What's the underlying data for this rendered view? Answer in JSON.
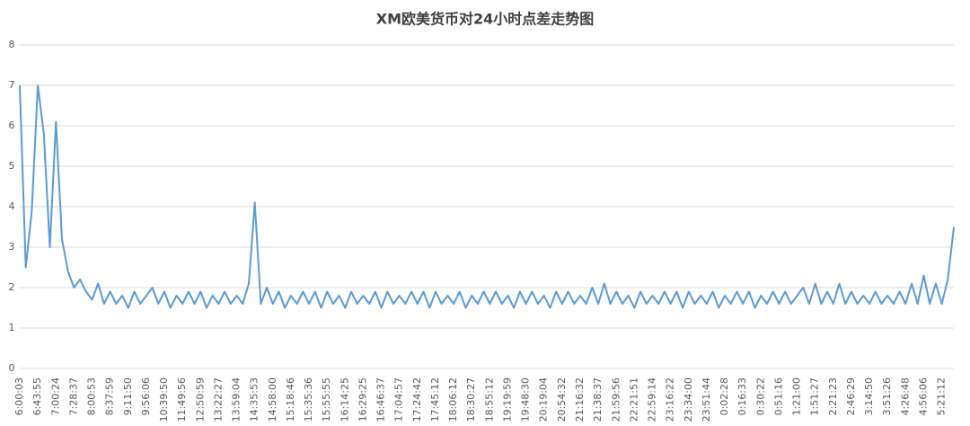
{
  "chart_data": {
    "type": "line",
    "title": "XM欧美货币对24小时点差走势图",
    "categories": [
      "6:00:03",
      null,
      null,
      "6:43:55",
      null,
      null,
      "7:00:24",
      null,
      null,
      "7:28:37",
      null,
      null,
      "8:00:53",
      null,
      null,
      "8:37:59",
      null,
      null,
      "9:11:50",
      null,
      null,
      "9:56:06",
      null,
      null,
      "10:39:50",
      null,
      null,
      "11:49:56",
      null,
      null,
      "12:50:59",
      null,
      null,
      "13:22:27",
      null,
      null,
      "13:59:04",
      null,
      null,
      "14:35:53",
      null,
      null,
      "14:58:00",
      null,
      null,
      "15:18:46",
      null,
      null,
      "15:35:36",
      null,
      null,
      "15:55:55",
      null,
      null,
      "16:14:25",
      null,
      null,
      "16:29:25",
      null,
      null,
      "16:46:37",
      null,
      null,
      "17:04:57",
      null,
      null,
      "17:24:42",
      null,
      null,
      "17:45:12",
      null,
      null,
      "18:06:12",
      null,
      null,
      "18:30:27",
      null,
      null,
      "18:55:12",
      null,
      null,
      "19:19:59",
      null,
      null,
      "19:48:30",
      null,
      null,
      "20:19:04",
      null,
      null,
      "20:54:32",
      null,
      null,
      "21:16:32",
      null,
      null,
      "21:38:37",
      null,
      null,
      "21:59:56",
      null,
      null,
      "22:21:51",
      null,
      null,
      "22:59:14",
      null,
      null,
      "23:16:22",
      null,
      null,
      "23:34:00",
      null,
      null,
      "23:51:44",
      null,
      null,
      "0:02:28",
      null,
      null,
      "0:16:33",
      null,
      null,
      "0:30:22",
      null,
      null,
      "0:51:16",
      null,
      null,
      "1:21:00",
      null,
      null,
      "1:51:27",
      null,
      null,
      "2:21:23",
      null,
      null,
      "2:46:29",
      null,
      null,
      "3:14:50",
      null,
      null,
      "3:51:26",
      null,
      null,
      "4:26:48",
      null,
      null,
      "4:56:06",
      null,
      null,
      "5:21:12",
      null,
      null
    ],
    "series": [
      {
        "color": "#5b9bd5",
        "values": [
          7.0,
          2.5,
          3.9,
          7.0,
          5.8,
          3.0,
          6.1,
          3.2,
          2.4,
          2.0,
          2.2,
          1.9,
          1.7,
          2.1,
          1.6,
          1.9,
          1.6,
          1.8,
          1.5,
          1.9,
          1.6,
          1.8,
          2.0,
          1.6,
          1.9,
          1.5,
          1.8,
          1.6,
          1.9,
          1.6,
          1.9,
          1.5,
          1.8,
          1.6,
          1.9,
          1.6,
          1.8,
          1.6,
          2.1,
          4.1,
          1.6,
          2.0,
          1.6,
          1.9,
          1.5,
          1.8,
          1.6,
          1.9,
          1.6,
          1.9,
          1.5,
          1.9,
          1.6,
          1.8,
          1.5,
          1.9,
          1.6,
          1.8,
          1.6,
          1.9,
          1.5,
          1.9,
          1.6,
          1.8,
          1.6,
          1.9,
          1.6,
          1.9,
          1.5,
          1.9,
          1.6,
          1.8,
          1.6,
          1.9,
          1.5,
          1.8,
          1.6,
          1.9,
          1.6,
          1.9,
          1.6,
          1.8,
          1.5,
          1.9,
          1.6,
          1.9,
          1.6,
          1.8,
          1.5,
          1.9,
          1.6,
          1.9,
          1.6,
          1.8,
          1.6,
          2.0,
          1.6,
          2.1,
          1.6,
          1.9,
          1.6,
          1.8,
          1.5,
          1.9,
          1.6,
          1.8,
          1.6,
          1.9,
          1.6,
          1.9,
          1.5,
          1.9,
          1.6,
          1.8,
          1.6,
          1.9,
          1.5,
          1.8,
          1.6,
          1.9,
          1.6,
          1.9,
          1.5,
          1.8,
          1.6,
          1.9,
          1.6,
          1.9,
          1.6,
          1.8,
          2.0,
          1.6,
          2.1,
          1.6,
          1.9,
          1.6,
          2.1,
          1.6,
          1.9,
          1.6,
          1.8,
          1.6,
          1.9,
          1.6,
          1.8,
          1.6,
          1.9,
          1.6,
          2.1,
          1.6,
          2.3,
          1.6,
          2.1,
          1.6,
          2.2,
          3.5
        ]
      }
    ],
    "ylim": [
      0,
      8
    ],
    "yticks": [
      0,
      1,
      2,
      3,
      4,
      5,
      6,
      7,
      8
    ],
    "grid": true
  }
}
